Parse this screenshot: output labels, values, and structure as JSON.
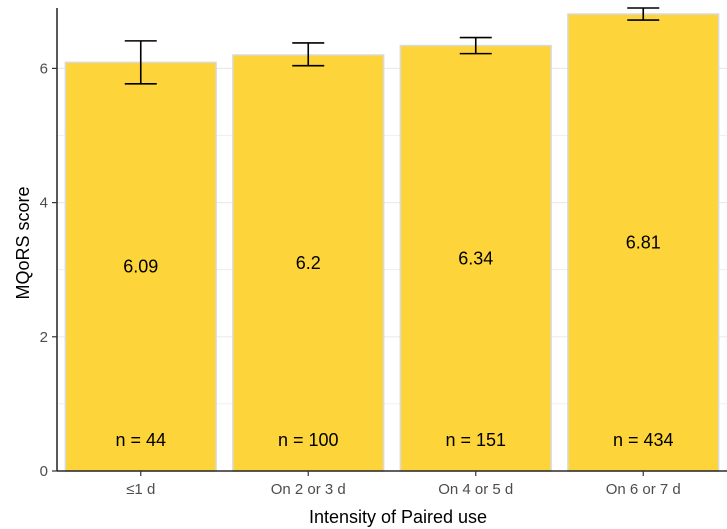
{
  "chart_data": {
    "type": "bar",
    "categories": [
      "≤1 d",
      "On 2 or 3 d",
      "On 4 or 5 d",
      "On 6 or 7 d"
    ],
    "values": [
      6.09,
      6.2,
      6.34,
      6.81
    ],
    "value_labels": [
      "6.09",
      "6.2",
      "6.34",
      "6.81"
    ],
    "n_labels": [
      "n = 44",
      "n = 100",
      "n = 151",
      "n = 434"
    ],
    "error_bars": [
      {
        "low": 5.77,
        "high": 6.41
      },
      {
        "low": 6.04,
        "high": 6.38
      },
      {
        "low": 6.22,
        "high": 6.46
      },
      {
        "low": 6.72,
        "high": 6.9
      }
    ],
    "xlabel": "Intensity of Paired use",
    "ylabel": "MQoRS score",
    "ylim": [
      0,
      6.9
    ],
    "yticks": [
      0,
      2,
      4,
      6
    ],
    "grid": true,
    "legend": "none",
    "colors": {
      "bar_fill": "#fdd53a",
      "bar_stroke": "#d9d9d9",
      "grid": "#ebebeb",
      "axis": "#000000"
    }
  }
}
